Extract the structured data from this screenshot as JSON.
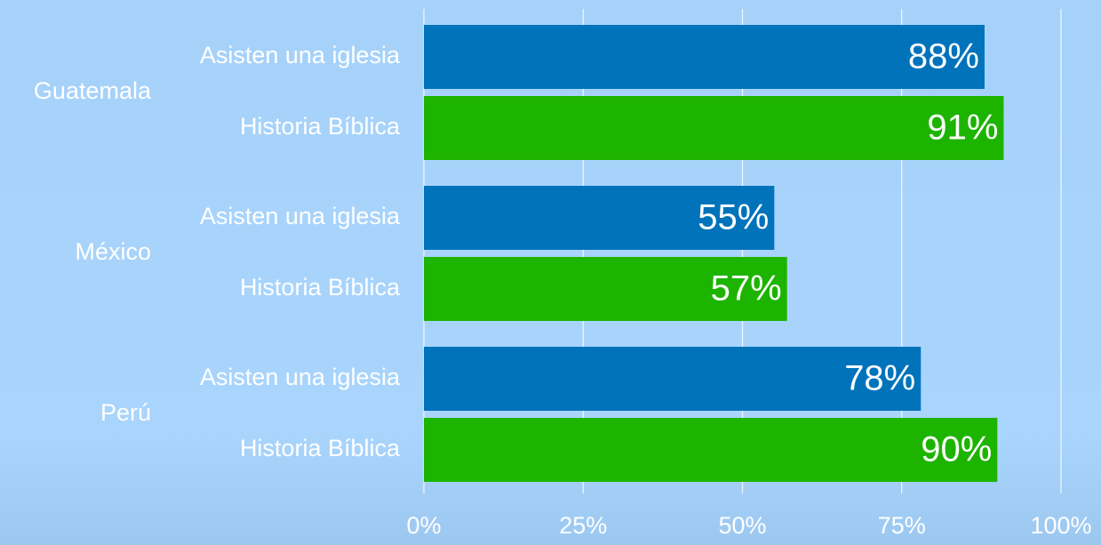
{
  "chart_data": {
    "type": "bar",
    "orientation": "horizontal",
    "categories": [
      "Guatemala",
      "México",
      "Perú"
    ],
    "series": [
      {
        "name": "Asisten una iglesia",
        "color": "#0073bb",
        "values": [
          88,
          55,
          78
        ],
        "value_labels": [
          "88%",
          "55%",
          "78%"
        ]
      },
      {
        "name": "Historia Bíblica",
        "color": "#1db400",
        "values": [
          91,
          57,
          90
        ],
        "value_labels": [
          "91%",
          "57%",
          "90%"
        ]
      }
    ],
    "xlim": [
      0,
      100
    ],
    "xticks": [
      {
        "value": 0,
        "label": "0%"
      },
      {
        "value": 25,
        "label": "25%"
      },
      {
        "value": 50,
        "label": "50%"
      },
      {
        "value": 75,
        "label": "75%"
      },
      {
        "value": 100,
        "label": "100%"
      }
    ],
    "grid": true
  }
}
